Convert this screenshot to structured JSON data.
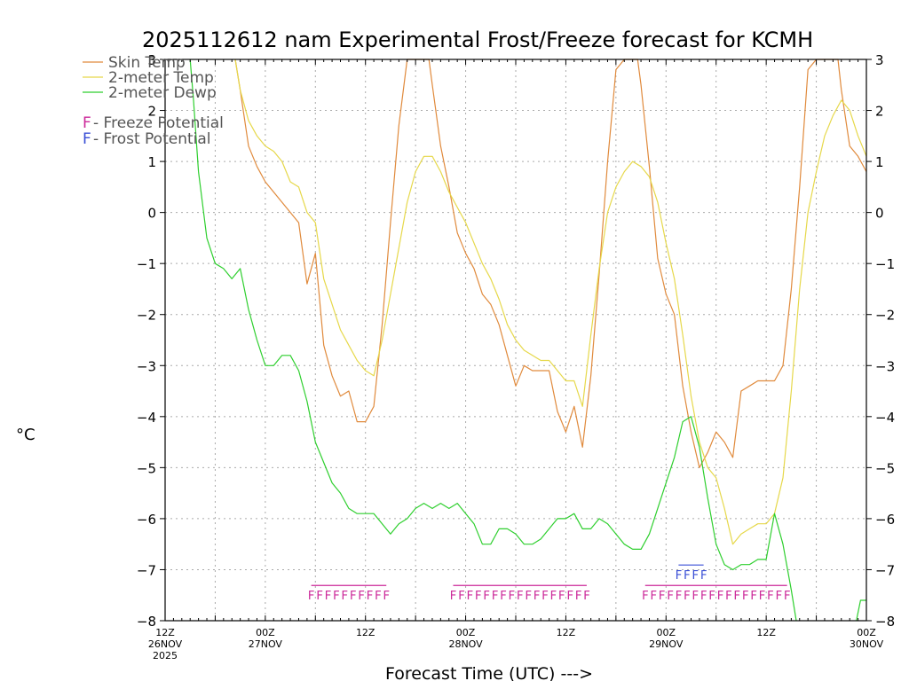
{
  "chart_data": {
    "type": "line",
    "title": "2025112612 nam Experimental Frost/Freeze forecast for KCMH",
    "ylabel": "°C",
    "xlabel": "Forecast Time (UTC) --->",
    "ylim": [
      -8,
      3
    ],
    "xlim": [
      0,
      84
    ],
    "yticks": [
      -8,
      -7,
      -6,
      -5,
      -4,
      -3,
      -2,
      -1,
      0,
      1,
      2,
      3
    ],
    "ytick_labels": [
      "−8",
      "−7",
      "−6",
      "−5",
      "−4",
      "−3",
      "−2",
      "−1",
      "0",
      "1",
      "2",
      "3"
    ],
    "xticks": [
      {
        "x": 0,
        "lines": [
          "12Z",
          "26NOV",
          "2025"
        ]
      },
      {
        "x": 12,
        "lines": [
          "00Z",
          "27NOV"
        ]
      },
      {
        "x": 24,
        "lines": [
          "12Z"
        ]
      },
      {
        "x": 36,
        "lines": [
          "00Z",
          "28NOV"
        ]
      },
      {
        "x": 48,
        "lines": [
          "12Z"
        ]
      },
      {
        "x": 60,
        "lines": [
          "00Z",
          "29NOV"
        ]
      },
      {
        "x": 72,
        "lines": [
          "12Z"
        ]
      },
      {
        "x": 84,
        "lines": [
          "00Z",
          "30NOV"
        ]
      }
    ],
    "grid": true,
    "legend": {
      "position": "top-left",
      "entries": [
        {
          "label": "Skin Temp",
          "color": "#e08a3c"
        },
        {
          "label": "2-meter Temp",
          "color": "#e6d84a"
        },
        {
          "label": "2-meter Dewp",
          "color": "#2ecf2e"
        }
      ],
      "potential_entries": [
        {
          "symbol": "F",
          "label": " - Freeze Potential",
          "color": "#cc2a9a"
        },
        {
          "symbol": "F",
          "label": " - Frost Potential",
          "color": "#3a4fd6"
        }
      ]
    },
    "series": [
      {
        "name": "Skin Temp",
        "color": "#e08a3c",
        "points": [
          [
            8.4,
            3.0
          ],
          [
            9.0,
            2.4
          ],
          [
            10.0,
            1.3
          ],
          [
            11.0,
            0.9
          ],
          [
            12.0,
            0.6
          ],
          [
            13.0,
            0.4
          ],
          [
            14.0,
            0.2
          ],
          [
            15.0,
            0.0
          ],
          [
            16.0,
            -0.2
          ],
          [
            17.0,
            -1.4
          ],
          [
            18.0,
            -0.8
          ],
          [
            19.0,
            -2.6
          ],
          [
            20.0,
            -3.2
          ],
          [
            21.0,
            -3.6
          ],
          [
            22.0,
            -3.5
          ],
          [
            23.0,
            -4.1
          ],
          [
            24.0,
            -4.1
          ],
          [
            25.0,
            -3.8
          ],
          [
            26.0,
            -2.2
          ],
          [
            27.0,
            -0.2
          ],
          [
            28.0,
            1.7
          ],
          [
            29.0,
            3.0
          ],
          [
            31.6,
            3.0
          ],
          [
            32.0,
            2.5
          ],
          [
            33.0,
            1.3
          ],
          [
            34.0,
            0.5
          ],
          [
            35.0,
            -0.4
          ],
          [
            36.0,
            -0.8
          ],
          [
            37.0,
            -1.1
          ],
          [
            38.0,
            -1.6
          ],
          [
            39.0,
            -1.8
          ],
          [
            40.0,
            -2.2
          ],
          [
            41.0,
            -2.8
          ],
          [
            42.0,
            -3.4
          ],
          [
            43.0,
            -3.0
          ],
          [
            44.0,
            -3.1
          ],
          [
            45.0,
            -3.1
          ],
          [
            46.0,
            -3.1
          ],
          [
            47.0,
            -3.9
          ],
          [
            48.0,
            -4.3
          ],
          [
            49.0,
            -3.8
          ],
          [
            50.0,
            -4.6
          ],
          [
            51.0,
            -3.2
          ],
          [
            52.0,
            -1.2
          ],
          [
            53.0,
            1.0
          ],
          [
            54.0,
            2.8
          ],
          [
            55.0,
            3.0
          ],
          [
            56.6,
            3.0
          ],
          [
            57.0,
            2.5
          ],
          [
            58.0,
            0.9
          ],
          [
            59.0,
            -0.9
          ],
          [
            60.0,
            -1.6
          ],
          [
            61.0,
            -2.0
          ],
          [
            62.0,
            -3.4
          ],
          [
            63.0,
            -4.3
          ],
          [
            64.0,
            -5.0
          ],
          [
            65.0,
            -4.7
          ],
          [
            66.0,
            -4.3
          ],
          [
            67.0,
            -4.5
          ],
          [
            68.0,
            -4.8
          ],
          [
            69.0,
            -3.5
          ],
          [
            70.0,
            -3.4
          ],
          [
            71.0,
            -3.3
          ],
          [
            72.0,
            -3.3
          ],
          [
            73.0,
            -3.3
          ],
          [
            74.0,
            -3.0
          ],
          [
            75.0,
            -1.5
          ],
          [
            76.0,
            0.5
          ],
          [
            77.0,
            2.8
          ],
          [
            78.0,
            3.0
          ],
          [
            80.6,
            3.0
          ],
          [
            81.0,
            2.4
          ],
          [
            82.0,
            1.3
          ],
          [
            83.0,
            1.1
          ],
          [
            84.0,
            0.8
          ]
        ]
      },
      {
        "name": "2-meter Temp",
        "color": "#e6d84a",
        "points": [
          [
            8.4,
            3.0
          ],
          [
            9.0,
            2.4
          ],
          [
            10.0,
            1.8
          ],
          [
            11.0,
            1.5
          ],
          [
            12.0,
            1.3
          ],
          [
            13.0,
            1.2
          ],
          [
            14.0,
            1.0
          ],
          [
            15.0,
            0.6
          ],
          [
            16.0,
            0.5
          ],
          [
            17.0,
            0.0
          ],
          [
            18.0,
            -0.2
          ],
          [
            19.0,
            -1.3
          ],
          [
            20.0,
            -1.8
          ],
          [
            21.0,
            -2.3
          ],
          [
            22.0,
            -2.6
          ],
          [
            23.0,
            -2.9
          ],
          [
            24.0,
            -3.1
          ],
          [
            25.0,
            -3.2
          ],
          [
            26.0,
            -2.5
          ],
          [
            27.0,
            -1.6
          ],
          [
            28.0,
            -0.7
          ],
          [
            29.0,
            0.2
          ],
          [
            30.0,
            0.8
          ],
          [
            31.0,
            1.1
          ],
          [
            32.0,
            1.1
          ],
          [
            33.0,
            0.8
          ],
          [
            34.0,
            0.4
          ],
          [
            35.0,
            0.1
          ],
          [
            36.0,
            -0.2
          ],
          [
            37.0,
            -0.6
          ],
          [
            38.0,
            -1.0
          ],
          [
            39.0,
            -1.3
          ],
          [
            40.0,
            -1.7
          ],
          [
            41.0,
            -2.2
          ],
          [
            42.0,
            -2.5
          ],
          [
            43.0,
            -2.7
          ],
          [
            44.0,
            -2.8
          ],
          [
            45.0,
            -2.9
          ],
          [
            46.0,
            -2.9
          ],
          [
            47.0,
            -3.1
          ],
          [
            48.0,
            -3.3
          ],
          [
            49.0,
            -3.3
          ],
          [
            50.0,
            -3.8
          ],
          [
            51.0,
            -2.4
          ],
          [
            52.0,
            -1.1
          ],
          [
            53.0,
            0.0
          ],
          [
            54.0,
            0.5
          ],
          [
            55.0,
            0.8
          ],
          [
            56.0,
            1.0
          ],
          [
            57.0,
            0.9
          ],
          [
            58.0,
            0.7
          ],
          [
            59.0,
            0.2
          ],
          [
            60.0,
            -0.6
          ],
          [
            61.0,
            -1.3
          ],
          [
            62.0,
            -2.4
          ],
          [
            63.0,
            -3.6
          ],
          [
            64.0,
            -4.5
          ],
          [
            65.0,
            -5.0
          ],
          [
            66.0,
            -5.2
          ],
          [
            67.0,
            -5.8
          ],
          [
            68.0,
            -6.5
          ],
          [
            69.0,
            -6.3
          ],
          [
            70.0,
            -6.2
          ],
          [
            71.0,
            -6.1
          ],
          [
            72.0,
            -6.1
          ],
          [
            73.0,
            -5.9
          ],
          [
            74.0,
            -5.2
          ],
          [
            75.0,
            -3.5
          ],
          [
            76.0,
            -1.5
          ],
          [
            77.0,
            0.0
          ],
          [
            78.0,
            0.8
          ],
          [
            79.0,
            1.5
          ],
          [
            80.0,
            1.9
          ],
          [
            81.0,
            2.2
          ],
          [
            82.0,
            2.0
          ],
          [
            83.0,
            1.5
          ],
          [
            84.0,
            1.1
          ]
        ]
      },
      {
        "name": "2-meter Dewp",
        "color": "#2ecf2e",
        "points": [
          [
            3.0,
            3.0
          ],
          [
            3.4,
            2.2
          ],
          [
            4.0,
            0.8
          ],
          [
            5.0,
            -0.5
          ],
          [
            6.0,
            -1.0
          ],
          [
            7.0,
            -1.1
          ],
          [
            8.0,
            -1.3
          ],
          [
            9.0,
            -1.1
          ],
          [
            10.0,
            -1.9
          ],
          [
            11.0,
            -2.5
          ],
          [
            12.0,
            -3.0
          ],
          [
            13.0,
            -3.0
          ],
          [
            14.0,
            -2.8
          ],
          [
            15.0,
            -2.8
          ],
          [
            16.0,
            -3.1
          ],
          [
            17.0,
            -3.7
          ],
          [
            18.0,
            -4.5
          ],
          [
            19.0,
            -4.9
          ],
          [
            20.0,
            -5.3
          ],
          [
            21.0,
            -5.5
          ],
          [
            22.0,
            -5.8
          ],
          [
            23.0,
            -5.9
          ],
          [
            24.0,
            -5.9
          ],
          [
            25.0,
            -5.9
          ],
          [
            26.0,
            -6.1
          ],
          [
            27.0,
            -6.3
          ],
          [
            28.0,
            -6.1
          ],
          [
            29.0,
            -6.0
          ],
          [
            30.0,
            -5.8
          ],
          [
            31.0,
            -5.7
          ],
          [
            32.0,
            -5.8
          ],
          [
            33.0,
            -5.7
          ],
          [
            34.0,
            -5.8
          ],
          [
            35.0,
            -5.7
          ],
          [
            36.0,
            -5.9
          ],
          [
            37.0,
            -6.1
          ],
          [
            38.0,
            -6.5
          ],
          [
            39.0,
            -6.5
          ],
          [
            40.0,
            -6.2
          ],
          [
            41.0,
            -6.2
          ],
          [
            42.0,
            -6.3
          ],
          [
            43.0,
            -6.5
          ],
          [
            44.0,
            -6.5
          ],
          [
            45.0,
            -6.4
          ],
          [
            46.0,
            -6.2
          ],
          [
            47.0,
            -6.0
          ],
          [
            48.0,
            -6.0
          ],
          [
            49.0,
            -5.9
          ],
          [
            50.0,
            -6.2
          ],
          [
            51.0,
            -6.2
          ],
          [
            52.0,
            -6.0
          ],
          [
            53.0,
            -6.1
          ],
          [
            54.0,
            -6.3
          ],
          [
            55.0,
            -6.5
          ],
          [
            56.0,
            -6.6
          ],
          [
            57.0,
            -6.6
          ],
          [
            58.0,
            -6.3
          ],
          [
            59.0,
            -5.8
          ],
          [
            60.0,
            -5.3
          ],
          [
            61.0,
            -4.8
          ],
          [
            62.0,
            -4.1
          ],
          [
            63.0,
            -4.0
          ],
          [
            64.0,
            -4.6
          ],
          [
            65.0,
            -5.6
          ],
          [
            66.0,
            -6.5
          ],
          [
            67.0,
            -6.9
          ],
          [
            68.0,
            -7.0
          ],
          [
            69.0,
            -6.9
          ],
          [
            70.0,
            -6.9
          ],
          [
            71.0,
            -6.8
          ],
          [
            72.0,
            -6.8
          ],
          [
            73.0,
            -5.9
          ],
          [
            74.0,
            -6.5
          ],
          [
            75.0,
            -7.4
          ],
          [
            75.6,
            -8.0
          ]
        ]
      },
      {
        "name": "2-meter Dewp (late)",
        "color": "#2ecf2e",
        "points": [
          [
            82.8,
            -8.0
          ],
          [
            83.3,
            -7.6
          ],
          [
            84.0,
            -7.6
          ]
        ]
      }
    ],
    "freeze_potential": [
      {
        "start": 17.5,
        "end": 26.5,
        "y": -7.5
      },
      {
        "start": 34.5,
        "end": 50.5,
        "y": -7.5
      },
      {
        "start": 57.5,
        "end": 74.5,
        "y": -7.5
      }
    ],
    "frost_potential": [
      {
        "start": 61.5,
        "end": 64.5,
        "y": -7.1
      }
    ],
    "symbol": "F"
  }
}
